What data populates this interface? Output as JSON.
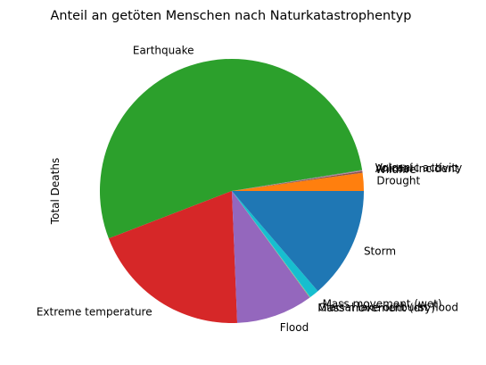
{
  "chart_data": {
    "type": "pie",
    "title": "Anteil an getöten Menschen nach Naturkatastrophentyp",
    "ylabel": "Total Deaths",
    "start_angle_deg": 0,
    "direction": "counterclockwise",
    "slices": [
      {
        "label": "Drought",
        "value": 2.2,
        "color": "#ff7f0e"
      },
      {
        "label": "Wildfire",
        "value": 0.2,
        "color": "#8c564b"
      },
      {
        "label": "Animal incident",
        "value": 0.05,
        "color": "#e377c2"
      },
      {
        "label": "Volcanic activity",
        "value": 0.1,
        "color": "#7f7f7f"
      },
      {
        "label": "Earthquake",
        "value": 53.3,
        "color": "#2ca02c"
      },
      {
        "label": "Extreme temperature",
        "value": 19.8,
        "color": "#d62728"
      },
      {
        "label": "Flood",
        "value": 9.4,
        "color": "#9467bd"
      },
      {
        "label": "Mass movement (dry)",
        "value": 0.05,
        "color": "#bcbd22"
      },
      {
        "label": "Glacial lake outburst flood",
        "value": 0.05,
        "color": "#17becf"
      },
      {
        "label": "Mass movement (wet)",
        "value": 1.15,
        "color": "#17becf"
      },
      {
        "label": "Storm",
        "value": 13.7,
        "color": "#1f77b4"
      }
    ]
  }
}
